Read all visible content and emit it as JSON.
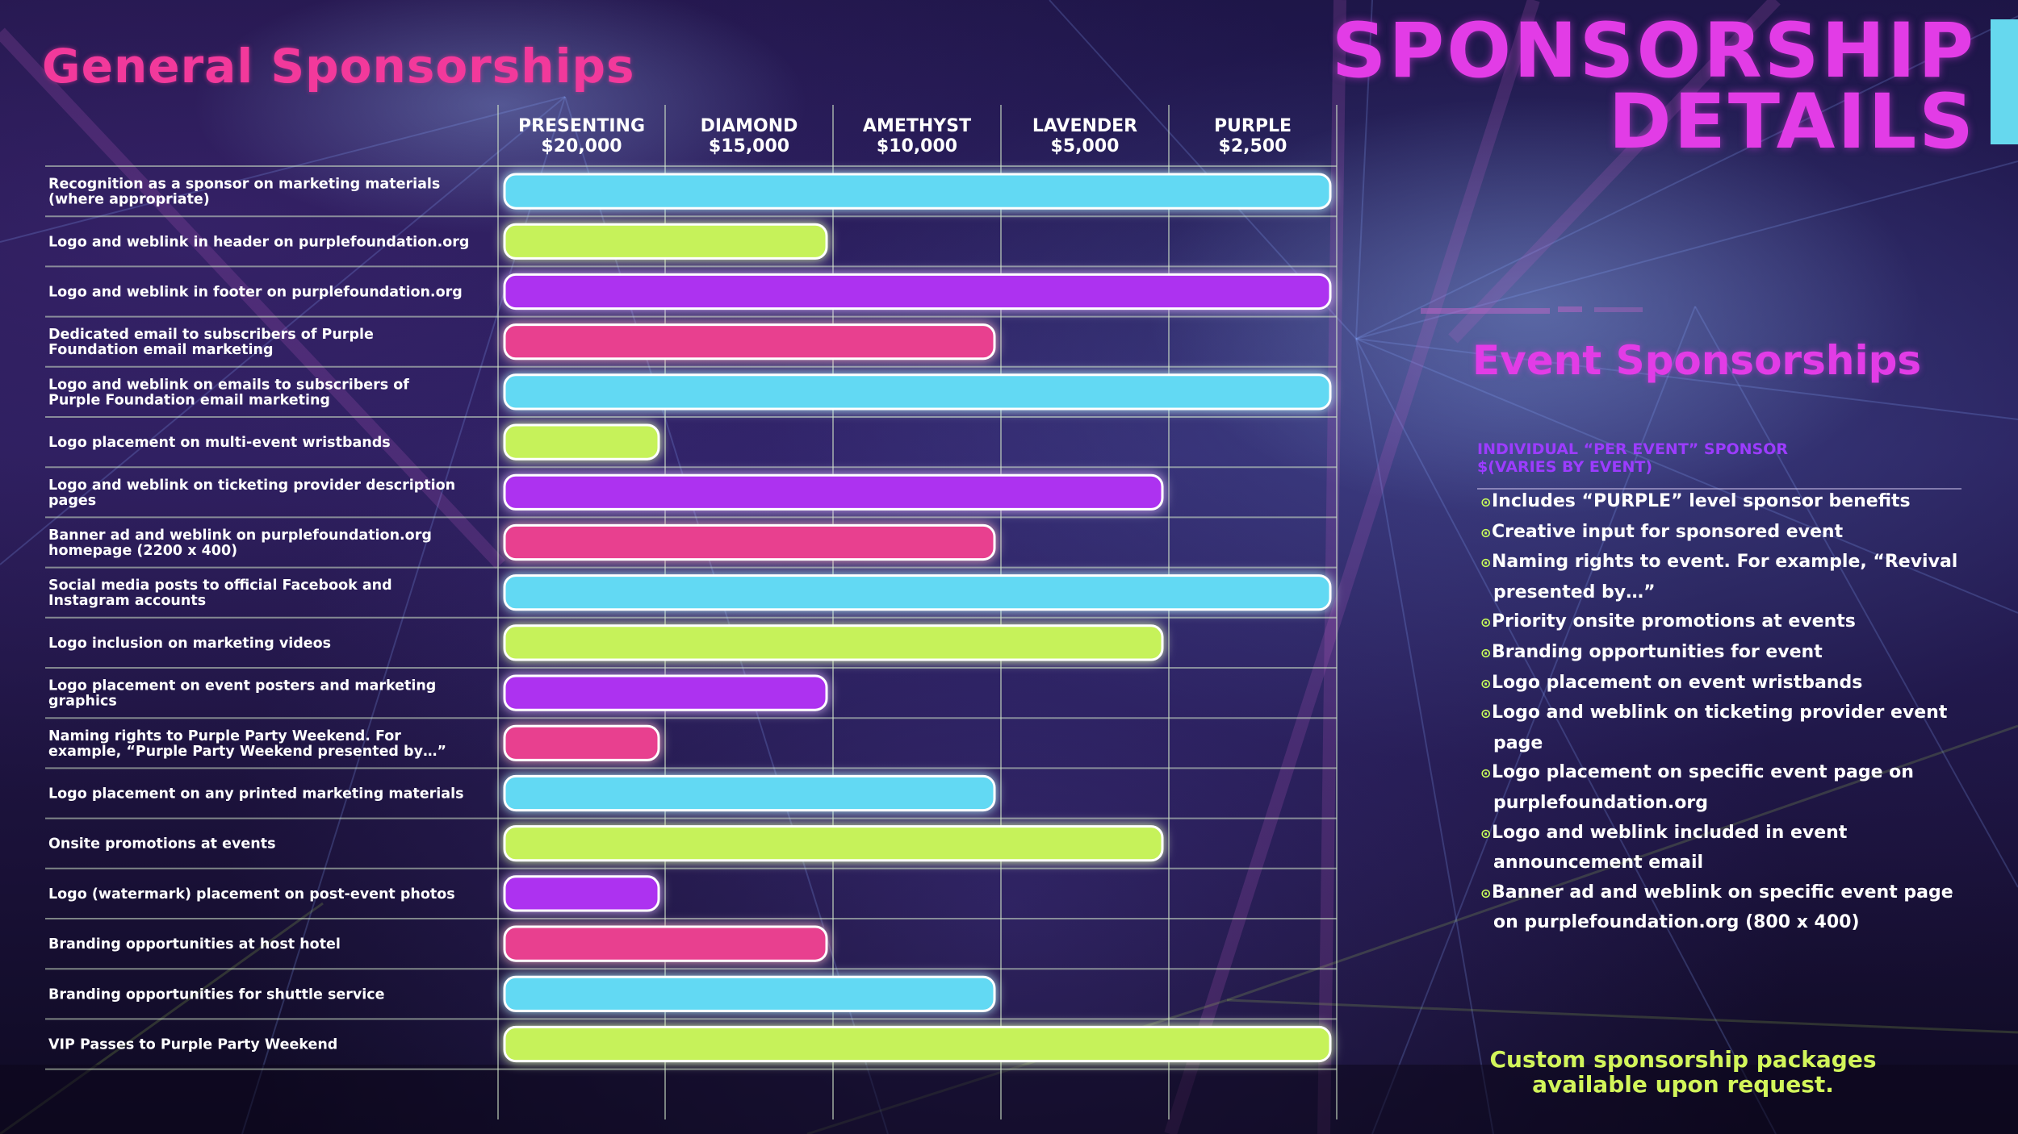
{
  "title_line1": "SPONSORSHIP",
  "title_line2": "DETAILS",
  "general_title": "General Sponsorships",
  "tiers": [
    {
      "name": "PRESENTING",
      "price": "$20,000"
    },
    {
      "name": "DIAMOND",
      "price": "$15,000"
    },
    {
      "name": "AMETHYST",
      "price": "$10,000"
    },
    {
      "name": "LAVENDER",
      "price": "$5,000"
    },
    {
      "name": "PURPLE",
      "price": "$2,500"
    }
  ],
  "bar_colors": [
    "#62d9f3",
    "#c6f25a",
    "#ad33f0",
    "#e83f8f"
  ],
  "benefits": [
    {
      "label": "Recognition as a sponsor on marketing materials (where appropriate)",
      "tiers_included": 5
    },
    {
      "label": "Logo and weblink in header on purplefoundation.org",
      "tiers_included": 2
    },
    {
      "label": "Logo and weblink in footer on purplefoundation.org",
      "tiers_included": 5
    },
    {
      "label": "Dedicated email to subscribers of Purple Foundation email marketing",
      "tiers_included": 3
    },
    {
      "label": "Logo and weblink on emails to subscribers of Purple Foundation email marketing",
      "tiers_included": 5
    },
    {
      "label": "Logo placement on multi-event wristbands",
      "tiers_included": 1
    },
    {
      "label": "Logo and weblink on ticketing provider description pages",
      "tiers_included": 4
    },
    {
      "label": "Banner ad and weblink on purplefoundation.org homepage (2200 x 400)",
      "tiers_included": 3
    },
    {
      "label": "Social media posts to official Facebook and Instagram accounts",
      "tiers_included": 5
    },
    {
      "label": "Logo inclusion on marketing videos",
      "tiers_included": 4
    },
    {
      "label": "Logo placement on event posters and marketing graphics",
      "tiers_included": 2
    },
    {
      "label": "Naming rights to Purple Party Weekend. For example, “Purple Party Weekend presented by…”",
      "tiers_included": 1
    },
    {
      "label": "Logo placement on any printed marketing materials",
      "tiers_included": 3
    },
    {
      "label": "Onsite promotions at events",
      "tiers_included": 4
    },
    {
      "label": "Logo (watermark) placement on post-event photos",
      "tiers_included": 1
    },
    {
      "label": "Branding opportunities at host hotel",
      "tiers_included": 2
    },
    {
      "label": "Branding opportunities for shuttle service",
      "tiers_included": 3
    },
    {
      "label": "VIP Passes to Purple Party Weekend",
      "tiers_included": 5
    }
  ],
  "event": {
    "title": "Event Sponsorships",
    "subtitle": "INDIVIDUAL “PER EVENT” SPONSOR $(VARIES BY EVENT)",
    "items": [
      "Includes “PURPLE” level sponsor benefits",
      "Creative input for sponsored event",
      "Naming rights to event. For example, “Revival presented by…”",
      "Priority onsite promotions at events",
      "Branding opportunities for event",
      "Logo placement on event wristbands",
      "Logo and weblink on ticketing provider event page",
      "Logo placement on specific event page on purplefoundation.org",
      "Logo and weblink included in event announcement email",
      "Banner ad and weblink on specific event page on purplefoundation.org (800 x 400)"
    ]
  },
  "custom_line1": "Custom sponsorship packages",
  "custom_line2": "available upon request."
}
